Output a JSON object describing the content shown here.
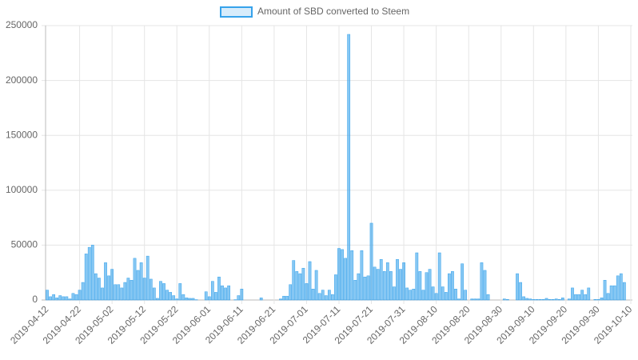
{
  "chart_data": {
    "type": "bar",
    "legend": "Amount of SBD converted to Steem",
    "color": "rgba(54,162,235,0.6)",
    "border_color": "#36a2eb",
    "grid": true,
    "ylim": [
      0,
      250000
    ],
    "yticks": [
      0,
      50000,
      100000,
      150000,
      200000,
      250000
    ],
    "categories": [
      "2019-04-12",
      null,
      null,
      null,
      null,
      null,
      null,
      null,
      null,
      null,
      "2019-04-22",
      null,
      null,
      null,
      null,
      null,
      null,
      null,
      null,
      null,
      "2019-05-02",
      null,
      null,
      null,
      null,
      null,
      null,
      null,
      null,
      null,
      "2019-05-12",
      null,
      null,
      null,
      null,
      null,
      null,
      null,
      null,
      null,
      "2019-05-22",
      null,
      null,
      null,
      null,
      null,
      null,
      null,
      null,
      null,
      "2019-06-01",
      null,
      null,
      null,
      null,
      null,
      null,
      null,
      null,
      null,
      "2019-06-11",
      null,
      null,
      null,
      null,
      null,
      null,
      null,
      null,
      null,
      "2019-06-21",
      null,
      null,
      null,
      null,
      null,
      null,
      null,
      null,
      null,
      "2019-07-01",
      null,
      null,
      null,
      null,
      null,
      null,
      null,
      null,
      null,
      "2019-07-11",
      null,
      null,
      null,
      null,
      null,
      null,
      null,
      null,
      null,
      "2019-07-21",
      null,
      null,
      null,
      null,
      null,
      null,
      null,
      null,
      null,
      "2019-07-31",
      null,
      null,
      null,
      null,
      null,
      null,
      null,
      null,
      null,
      "2019-08-10",
      null,
      null,
      null,
      null,
      null,
      null,
      null,
      null,
      null,
      "2019-08-20",
      null,
      null,
      null,
      null,
      null,
      null,
      null,
      null,
      null,
      "2019-08-30",
      null,
      null,
      null,
      null,
      null,
      null,
      null,
      null,
      null,
      "2019-09-10",
      null,
      null,
      null,
      null,
      null,
      null,
      null,
      null,
      null,
      "2019-09-20",
      null,
      null,
      null,
      null,
      null,
      null,
      null,
      null,
      null,
      "2019-09-30",
      null,
      null,
      null,
      null,
      null,
      null,
      null,
      null,
      null,
      "2019-10-10"
    ],
    "values": [
      9000,
      3000,
      5000,
      2000,
      4000,
      3000,
      3000,
      1000,
      6000,
      5000,
      9000,
      16000,
      42000,
      48000,
      50000,
      24000,
      20000,
      11000,
      34000,
      22000,
      28000,
      14000,
      14000,
      11000,
      16000,
      20000,
      18000,
      38000,
      27000,
      34000,
      20000,
      40000,
      19000,
      11000,
      1500,
      17000,
      15000,
      9000,
      7000,
      4000,
      1000,
      15000,
      5000,
      2000,
      1500,
      1500,
      300,
      0,
      0,
      7500,
      3000,
      17000,
      7000,
      21000,
      13000,
      11000,
      13000,
      0,
      300,
      4000,
      10000,
      0,
      0,
      0,
      0,
      0,
      2000,
      0,
      0,
      0,
      0,
      0,
      1000,
      3500,
      3500,
      14000,
      36000,
      26000,
      24000,
      29000,
      15000,
      35000,
      10000,
      27000,
      6000,
      9000,
      4000,
      9000,
      5000,
      23000,
      47000,
      46000,
      38000,
      242000,
      45000,
      18000,
      24000,
      45000,
      21000,
      22000,
      70000,
      30000,
      28000,
      37000,
      26000,
      34000,
      26000,
      12000,
      37000,
      28000,
      34000,
      11000,
      9000,
      10000,
      43000,
      26000,
      9000,
      25000,
      28000,
      12000,
      6000,
      43000,
      12000,
      7000,
      24000,
      26000,
      10000,
      1000,
      33000,
      9000,
      0,
      1000,
      1000,
      1000,
      34000,
      27000,
      5000,
      0,
      0,
      0,
      0,
      1000,
      500,
      0,
      0,
      24000,
      16000,
      3000,
      1500,
      1000,
      500,
      500,
      500,
      500,
      1500,
      500,
      500,
      1000,
      500,
      2000,
      0,
      1000,
      11000,
      5000,
      5000,
      9000,
      5000,
      11000,
      0,
      500,
      500,
      2000,
      18000,
      6000,
      13000,
      13000,
      22000,
      24000,
      16000,
      0,
      0
    ]
  }
}
